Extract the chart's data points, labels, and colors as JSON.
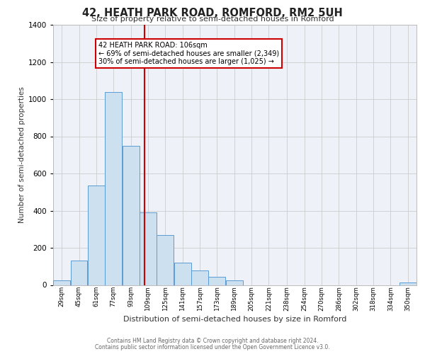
{
  "title": "42, HEATH PARK ROAD, ROMFORD, RM2 5UH",
  "subtitle": "Size of property relative to semi-detached houses in Romford",
  "xlabel": "Distribution of semi-detached houses by size in Romford",
  "ylabel": "Number of semi-detached properties",
  "bar_color": "#cce0f0",
  "bar_edge_color": "#5b9bd5",
  "categories": [
    "29sqm",
    "45sqm",
    "61sqm",
    "77sqm",
    "93sqm",
    "109sqm",
    "125sqm",
    "141sqm",
    "157sqm",
    "173sqm",
    "189sqm",
    "205sqm",
    "221sqm",
    "238sqm",
    "254sqm",
    "270sqm",
    "286sqm",
    "302sqm",
    "318sqm",
    "334sqm",
    "350sqm"
  ],
  "values": [
    25,
    130,
    537,
    1040,
    750,
    390,
    270,
    120,
    80,
    45,
    25,
    0,
    0,
    0,
    0,
    0,
    0,
    0,
    0,
    0,
    15
  ],
  "bin_edges": [
    21,
    37,
    53,
    69,
    85,
    101,
    117,
    133,
    149,
    165,
    181,
    197,
    213,
    229,
    246,
    262,
    278,
    294,
    310,
    326,
    342,
    358
  ],
  "property_value": 106,
  "property_label": "42 HEATH PARK ROAD: 106sqm",
  "annotation_line1": "← 69% of semi-detached houses are smaller (2,349)",
  "annotation_line2": "30% of semi-detached houses are larger (1,025) →",
  "vline_color": "#cc0000",
  "annotation_box_color": "#ffffff",
  "annotation_box_edge": "#cc0000",
  "ylim": [
    0,
    1400
  ],
  "yticks": [
    0,
    200,
    400,
    600,
    800,
    1000,
    1200,
    1400
  ],
  "grid_color": "#cccccc",
  "background_color": "#eef2f8",
  "footer1": "Contains HM Land Registry data © Crown copyright and database right 2024.",
  "footer2": "Contains public sector information licensed under the Open Government Licence v3.0."
}
